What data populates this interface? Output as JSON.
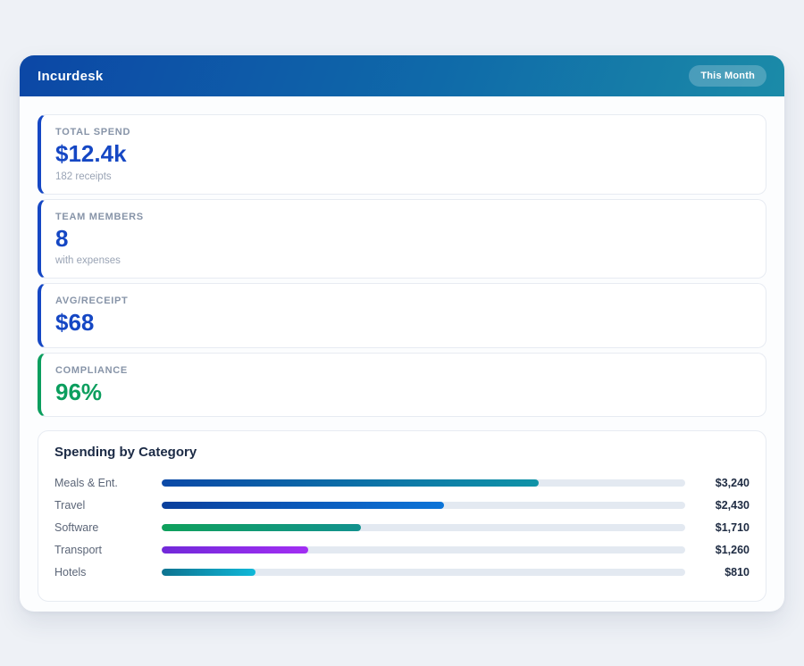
{
  "header": {
    "app_name": "Incurdesk",
    "period_badge": "This Month"
  },
  "stats": [
    {
      "label": "TOTAL SPEND",
      "value": "$12.4k",
      "sub": "182 receipts",
      "accent_color": "#1547c4",
      "value_color": "#1547c4"
    },
    {
      "label": "TEAM MEMBERS",
      "value": "8",
      "sub": "with expenses",
      "accent_color": "#1547c4",
      "value_color": "#1547c4"
    },
    {
      "label": "AVG/RECEIPT",
      "value": "$68",
      "sub": "",
      "accent_color": "#1547c4",
      "value_color": "#1547c4"
    },
    {
      "label": "COMPLIANCE",
      "value": "96%",
      "sub": "",
      "accent_color": "#0b9e5e",
      "value_color": "#0b9e5e"
    }
  ],
  "chart_data": {
    "type": "bar",
    "orientation": "horizontal",
    "title": "Spending by Category",
    "categories": [
      "Meals & Ent.",
      "Travel",
      "Software",
      "Transport",
      "Hotels"
    ],
    "values": [
      3240,
      2430,
      1710,
      1260,
      810
    ],
    "value_labels": [
      "$3,240",
      "$2,430",
      "$1,710",
      "$1,260",
      "$810"
    ],
    "axis_max": 4500,
    "grid": false,
    "legend": false,
    "track_color": "#e3e9f1",
    "bar_colors": [
      [
        "#0b49a7",
        "#0f93a7"
      ],
      [
        "#0a3f9c",
        "#0b74d8"
      ],
      [
        "#0fa05c",
        "#12928e"
      ],
      [
        "#7129d9",
        "#a22ef3"
      ],
      [
        "#0d7390",
        "#10b8d8"
      ]
    ]
  },
  "colors": {
    "page_bg": "#eef1f6",
    "container_bg": "#fcfdfe",
    "header_gradient_start": "#0c47a6",
    "header_gradient_end": "#1b8ba8",
    "accent_blue": "#1547c4",
    "accent_green": "#0b9e5e"
  }
}
